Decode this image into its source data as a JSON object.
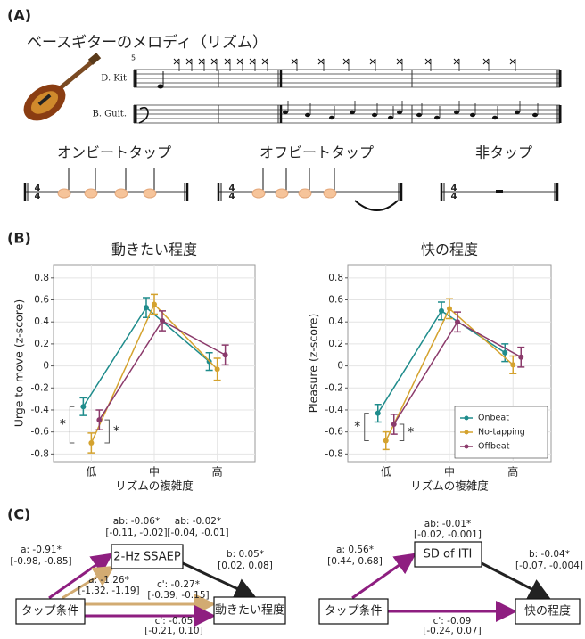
{
  "panel_a": {
    "label": "(A)",
    "title": "ベースギターのメロディ（リズム）",
    "staff_labels": [
      "D. Kit",
      "B. Guit."
    ],
    "measure_number": "5",
    "tap_titles": [
      "オンビートタップ",
      "オフビートタップ",
      "非タップ"
    ],
    "time_signature": {
      "top": "4",
      "bottom": "4"
    }
  },
  "panel_b": {
    "label": "(B)"
  },
  "chart_data": [
    {
      "type": "line",
      "title": "動きたい程度",
      "xlabel": "リズムの複雑度",
      "ylabel": "Urge to move (z-score)",
      "categories": [
        "低",
        "中",
        "高"
      ],
      "ylim": [
        -0.87,
        0.92
      ],
      "yticks": [
        -0.8,
        -0.6,
        -0.4,
        -0.2,
        0.0,
        0.2,
        0.4,
        0.6,
        0.8
      ],
      "grid": true,
      "annotations": [
        "*",
        "*"
      ],
      "series": [
        {
          "name": "Onbeat",
          "color": "#1f8c8c",
          "values": [
            -0.37,
            0.53,
            0.04
          ],
          "errors": [
            0.08,
            0.09,
            0.08
          ]
        },
        {
          "name": "No-tapping",
          "color": "#d4a22e",
          "values": [
            -0.7,
            0.56,
            -0.03
          ],
          "errors": [
            0.09,
            0.09,
            0.1
          ]
        },
        {
          "name": "Offbeat",
          "color": "#8b3a6b",
          "values": [
            -0.49,
            0.41,
            0.1
          ],
          "errors": [
            0.09,
            0.09,
            0.09
          ]
        }
      ]
    },
    {
      "type": "line",
      "title": "快の程度",
      "xlabel": "リズムの複雑度",
      "ylabel": "Pleasure (z-score)",
      "categories": [
        "低",
        "中",
        "高"
      ],
      "ylim": [
        -0.87,
        0.92
      ],
      "yticks": [
        -0.8,
        -0.6,
        -0.4,
        -0.2,
        0.0,
        0.2,
        0.4,
        0.6,
        0.8
      ],
      "grid": true,
      "annotations": [
        "*",
        "*"
      ],
      "legend": "bottom-right",
      "series": [
        {
          "name": "Onbeat",
          "color": "#1f8c8c",
          "values": [
            -0.43,
            0.5,
            0.12
          ],
          "errors": [
            0.08,
            0.08,
            0.08
          ]
        },
        {
          "name": "No-tapping",
          "color": "#d4a22e",
          "values": [
            -0.68,
            0.52,
            0.01
          ],
          "errors": [
            0.08,
            0.09,
            0.08
          ]
        },
        {
          "name": "Offbeat",
          "color": "#8b3a6b",
          "values": [
            -0.53,
            0.4,
            0.08
          ],
          "errors": [
            0.09,
            0.09,
            0.09
          ]
        }
      ]
    }
  ],
  "panel_c": {
    "label": "(C)",
    "left": {
      "nodes": [
        "タップ条件",
        "2-Hz SSAEP",
        "動きたい程度"
      ],
      "paths": [
        {
          "label": "ab: -0.06*",
          "ci": "[-0.11, -0.02]"
        },
        {
          "label": "ab: -0.02*",
          "ci": "[-0.04, -0.01]"
        },
        {
          "label": "a: -0.91*",
          "ci": "[-0.98, -0.85]"
        },
        {
          "label": "b: 0.05*",
          "ci": "[0.02, 0.08]"
        },
        {
          "label": "a: -1.26*",
          "ci": "[-1.32, -1.19]"
        },
        {
          "label": "c': -0.27*",
          "ci": "[-0.39, -0.15]"
        },
        {
          "label": "c': -0.05",
          "ci": "[-0.21, 0.10]"
        }
      ]
    },
    "right": {
      "nodes": [
        "タップ条件",
        "SD of ITI",
        "快の程度"
      ],
      "paths": [
        {
          "label": "ab: -0.01*",
          "ci": "[-0.02, -0.001]"
        },
        {
          "label": "a: 0.56*",
          "ci": "[0.44, 0.68]"
        },
        {
          "label": "b: -0.04*",
          "ci": "[-0.07, -0.004]"
        },
        {
          "label": "c': -0.09",
          "ci": "[-0.24, 0.07]"
        }
      ]
    }
  }
}
